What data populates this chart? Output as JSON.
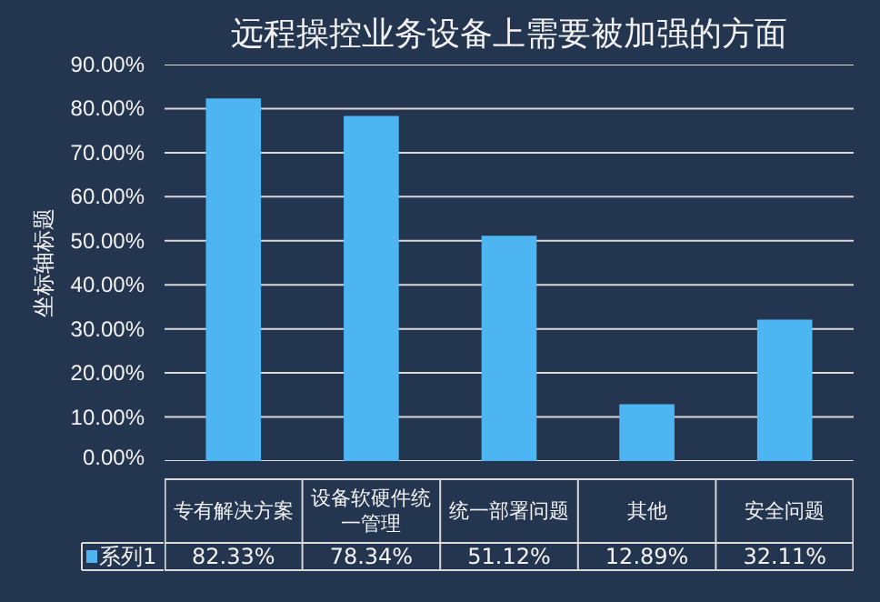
{
  "chart_data": {
    "type": "bar",
    "title": "远程操控业务设备上需要被加强的方面",
    "ylabel": "坐标轴标题",
    "categories": [
      "专有解决方案",
      "设备软硬件统一管理",
      "统一部署问题",
      "其他",
      "安全问题"
    ],
    "series": [
      {
        "name": "系列1",
        "color": "#4db6f2",
        "values": [
          82.33,
          78.34,
          51.12,
          12.89,
          32.11
        ],
        "value_labels": [
          "82.33%",
          "78.34%",
          "51.12%",
          "12.89%",
          "32.11%"
        ]
      }
    ],
    "ylim": [
      0,
      90
    ],
    "yticks": [
      {
        "value": 0,
        "label": "0.00%"
      },
      {
        "value": 10,
        "label": "10.00%"
      },
      {
        "value": 20,
        "label": "20.00%"
      },
      {
        "value": 30,
        "label": "30.00%"
      },
      {
        "value": 40,
        "label": "40.00%"
      },
      {
        "value": 50,
        "label": "50.00%"
      },
      {
        "value": 60,
        "label": "60.00%"
      },
      {
        "value": 70,
        "label": "70.00%"
      },
      {
        "value": 80,
        "label": "80.00%"
      },
      {
        "value": 90,
        "label": "90.00%"
      }
    ],
    "grid": "y",
    "legend": "bottom"
  }
}
